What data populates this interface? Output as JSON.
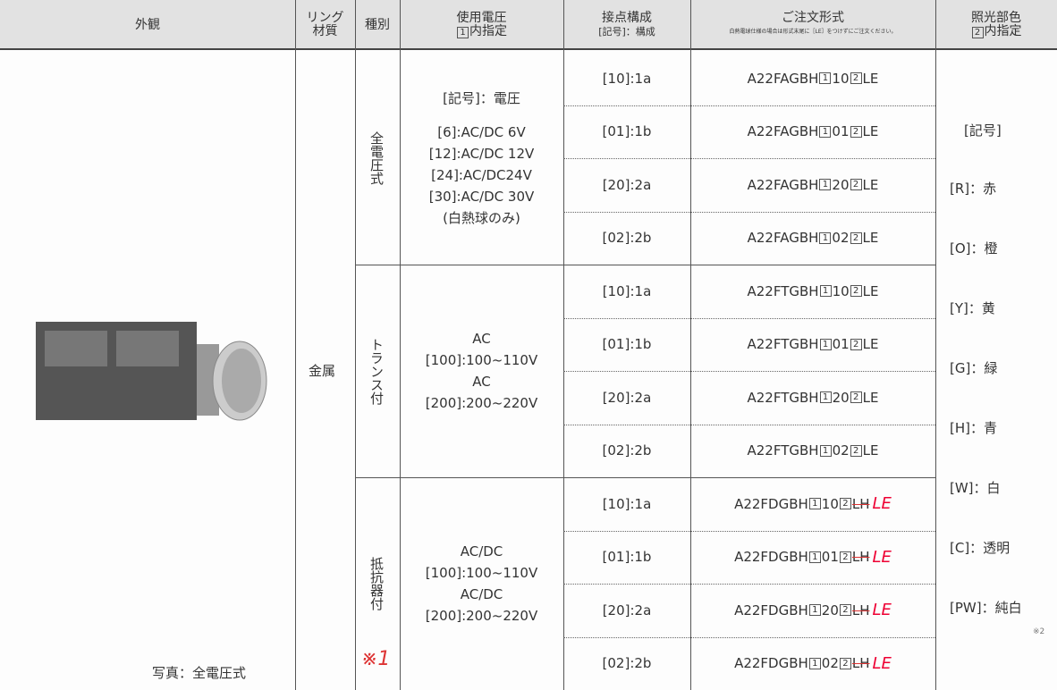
{
  "header": {
    "appearance": "外観",
    "ring_material": [
      "リング",
      "材質"
    ],
    "type": "種別",
    "voltage": {
      "title": "使用電圧",
      "box": "1",
      "note": "内指定"
    },
    "contacts": {
      "title": "接点構成",
      "note": "[記号]：構成"
    },
    "order": {
      "title": "ご注文形式",
      "note": "白熱電球仕様の場合は形式末尾に［LE］をつけずにご注文ください。"
    },
    "color": {
      "title": "照光部色",
      "box": "2",
      "note": "内指定"
    }
  },
  "photo_caption": "写真：全電圧式",
  "material": "金属",
  "handwritten_note": "※1",
  "groups": [
    {
      "type": "全電圧式",
      "voltages": [
        "[記号]：電圧",
        "[6]:AC/DC 6V",
        "[12]:AC/DC 12V",
        "[24]:AC/DC24V",
        "[30]:AC/DC 30V",
        "(白熱球のみ)"
      ],
      "rows": [
        {
          "contact": "[10]:1a",
          "order": {
            "prefix": "A22FAGBH",
            "box1": "1",
            "code": "10",
            "box2": "2",
            "suffix": "LE"
          }
        },
        {
          "contact": "[01]:1b",
          "order": {
            "prefix": "A22FAGBH",
            "box1": "1",
            "code": "01",
            "box2": "2",
            "suffix": "LE"
          }
        },
        {
          "contact": "[20]:2a",
          "order": {
            "prefix": "A22FAGBH",
            "box1": "1",
            "code": "20",
            "box2": "2",
            "suffix": "LE"
          }
        },
        {
          "contact": "[02]:2b",
          "order": {
            "prefix": "A22FAGBH",
            "box1": "1",
            "code": "02",
            "box2": "2",
            "suffix": "LE"
          }
        }
      ]
    },
    {
      "type": "トランス付",
      "voltages": [
        "AC",
        "[100]:100~110V",
        "AC",
        "[200]:200~220V"
      ],
      "rows": [
        {
          "contact": "[10]:1a",
          "order": {
            "prefix": "A22FTGBH",
            "box1": "1",
            "code": "10",
            "box2": "2",
            "suffix": "LE"
          }
        },
        {
          "contact": "[01]:1b",
          "order": {
            "prefix": "A22FTGBH",
            "box1": "1",
            "code": "01",
            "box2": "2",
            "suffix": "LE"
          }
        },
        {
          "contact": "[20]:2a",
          "order": {
            "prefix": "A22FTGBH",
            "box1": "1",
            "code": "20",
            "box2": "2",
            "suffix": "LE"
          }
        },
        {
          "contact": "[02]:2b",
          "order": {
            "prefix": "A22FTGBH",
            "box1": "1",
            "code": "02",
            "box2": "2",
            "suffix": "LE"
          }
        }
      ]
    },
    {
      "type": "抵抗器付",
      "voltages": [
        "AC/DC",
        "[100]:100~110V",
        "AC/DC",
        "[200]:200~220V"
      ],
      "rows": [
        {
          "contact": "[10]:1a",
          "order": {
            "prefix": "A22FDGBH",
            "box1": "1",
            "code": "10",
            "box2": "2",
            "struck": "LH",
            "correction": "LE"
          }
        },
        {
          "contact": "[01]:1b",
          "order": {
            "prefix": "A22FDGBH",
            "box1": "1",
            "code": "01",
            "box2": "2",
            "struck": "LH",
            "correction": "LE"
          }
        },
        {
          "contact": "[20]:2a",
          "order": {
            "prefix": "A22FDGBH",
            "box1": "1",
            "code": "20",
            "box2": "2",
            "struck": "LH",
            "correction": "LE"
          }
        },
        {
          "contact": "[02]:2b",
          "order": {
            "prefix": "A22FDGBH",
            "box1": "1",
            "code": "02",
            "box2": "2",
            "struck": "LH",
            "correction": "LE"
          }
        }
      ]
    }
  ],
  "colors": {
    "title": "[記号]",
    "items": [
      "[R]：赤",
      "[O]：橙",
      "[Y]：黄",
      "[G]：緑",
      "[H]：青",
      "[W]：白",
      "[C]：透明",
      "[PW]：純白"
    ],
    "footnote": "※2"
  }
}
